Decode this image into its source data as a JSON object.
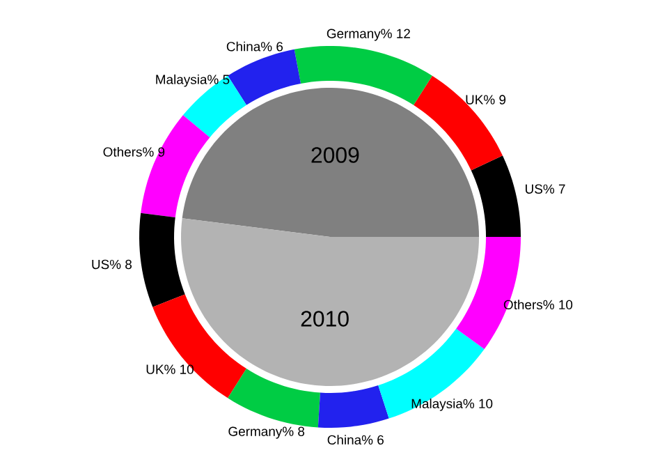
{
  "chart_data": [
    {
      "type": "pie",
      "categories": [
        "2009",
        "2010"
      ],
      "values": [
        48,
        52
      ],
      "colors": [
        "#808080",
        "#b3b3b3"
      ]
    },
    {
      "type": "donut",
      "categories": [
        "US%",
        "UK%",
        "Germany%",
        "China%",
        "Malaysia%",
        "Others%",
        "US%",
        "UK%",
        "Germany%",
        "China%",
        "Malaysia%",
        "Others%"
      ],
      "values": [
        7,
        9,
        12,
        6,
        5,
        9,
        8,
        10,
        8,
        6,
        10,
        10
      ],
      "colors": [
        "#000000",
        "#ff0000",
        "#00cc44",
        "#2222ee",
        "#00ffff",
        "#ff00ff",
        "#000000",
        "#ff0000",
        "#00cc44",
        "#2222ee",
        "#00ffff",
        "#ff00ff"
      ],
      "data_labels": true
    }
  ]
}
